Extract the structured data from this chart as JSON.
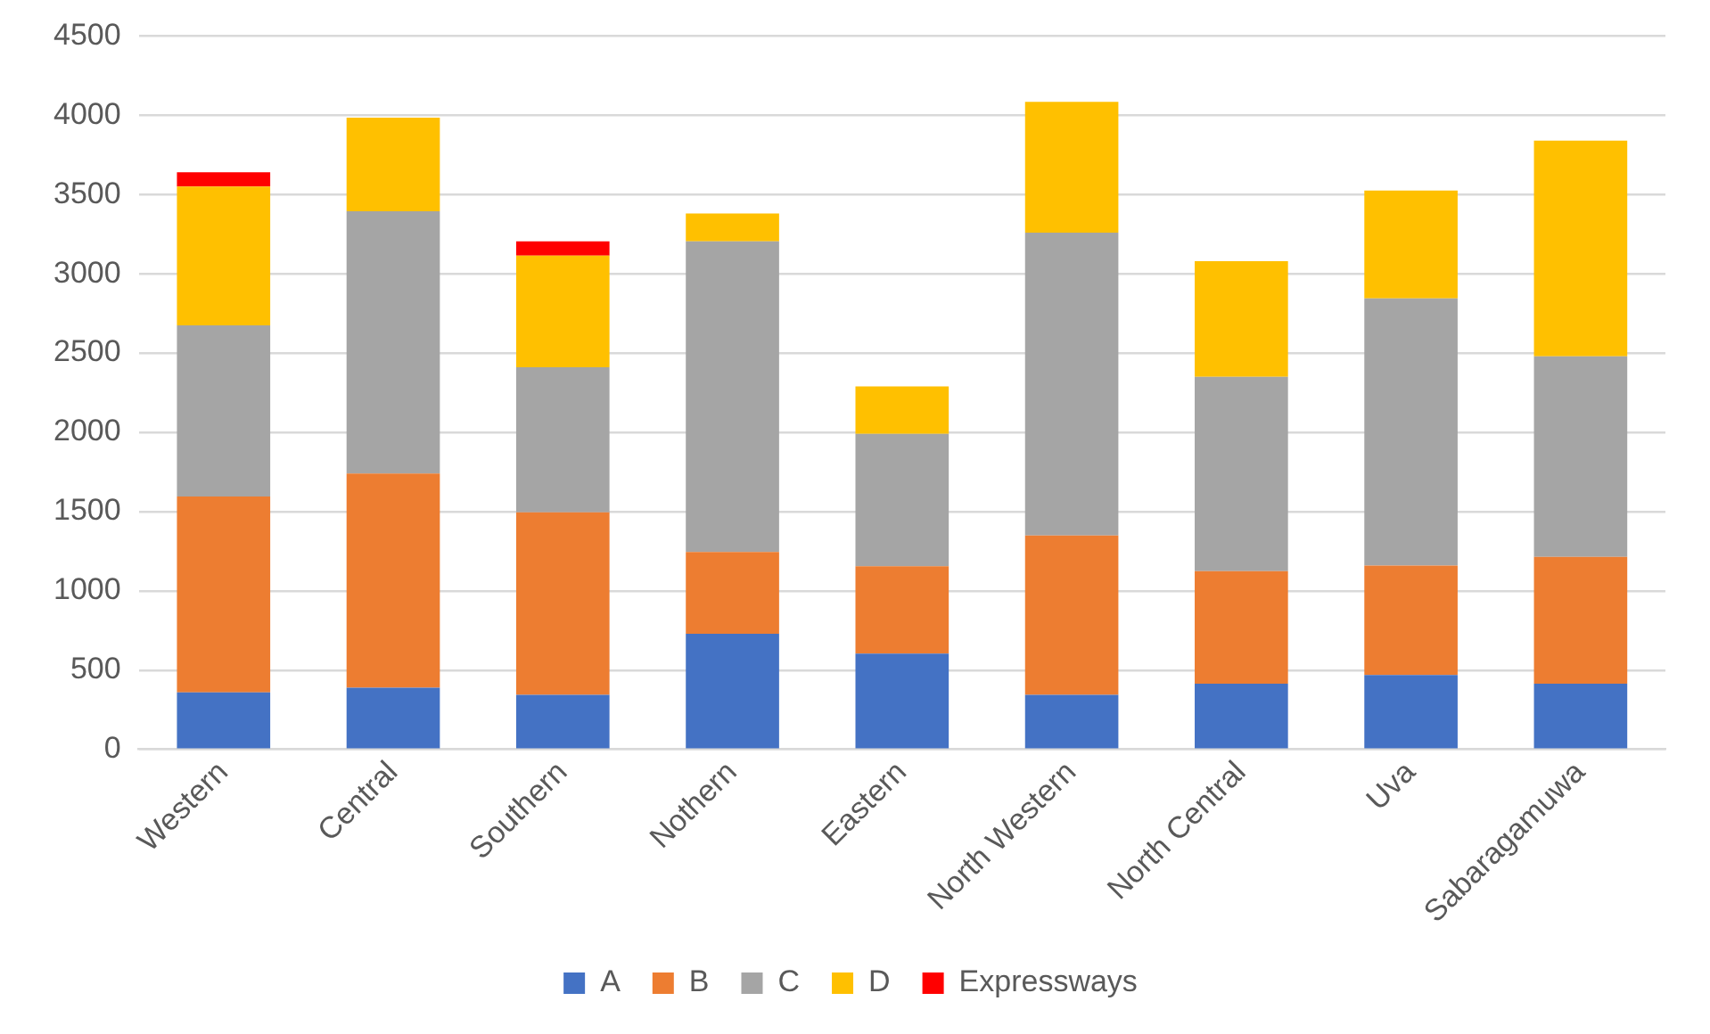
{
  "chart_data": {
    "type": "bar",
    "stacked": true,
    "categories": [
      "Western",
      "Central",
      "Southern",
      "Nothern",
      "Eastern",
      "North Western",
      "North Central",
      "Uva",
      "Sabaragamuwa"
    ],
    "series": [
      {
        "name": "A",
        "color": "#4472c4",
        "values": [
          360,
          390,
          345,
          730,
          605,
          345,
          415,
          470,
          415
        ]
      },
      {
        "name": "B",
        "color": "#ed7d31",
        "values": [
          1235,
          1350,
          1150,
          515,
          550,
          1005,
          710,
          690,
          800
        ]
      },
      {
        "name": "C",
        "color": "#a5a5a5",
        "values": [
          1080,
          1655,
          915,
          1960,
          835,
          1910,
          1225,
          1685,
          1265
        ]
      },
      {
        "name": "D",
        "color": "#ffc000",
        "values": [
          875,
          590,
          705,
          175,
          300,
          825,
          730,
          680,
          1360
        ]
      },
      {
        "name": "Expressways",
        "color": "#ff0000",
        "values": [
          90,
          null,
          90,
          null,
          null,
          null,
          null,
          null,
          null
        ]
      }
    ],
    "ylim": [
      0,
      4500
    ],
    "yticks": [
      0,
      500,
      1000,
      1500,
      2000,
      2500,
      3000,
      3500,
      4000,
      4500
    ],
    "grid": "y",
    "legend": "bottom"
  }
}
